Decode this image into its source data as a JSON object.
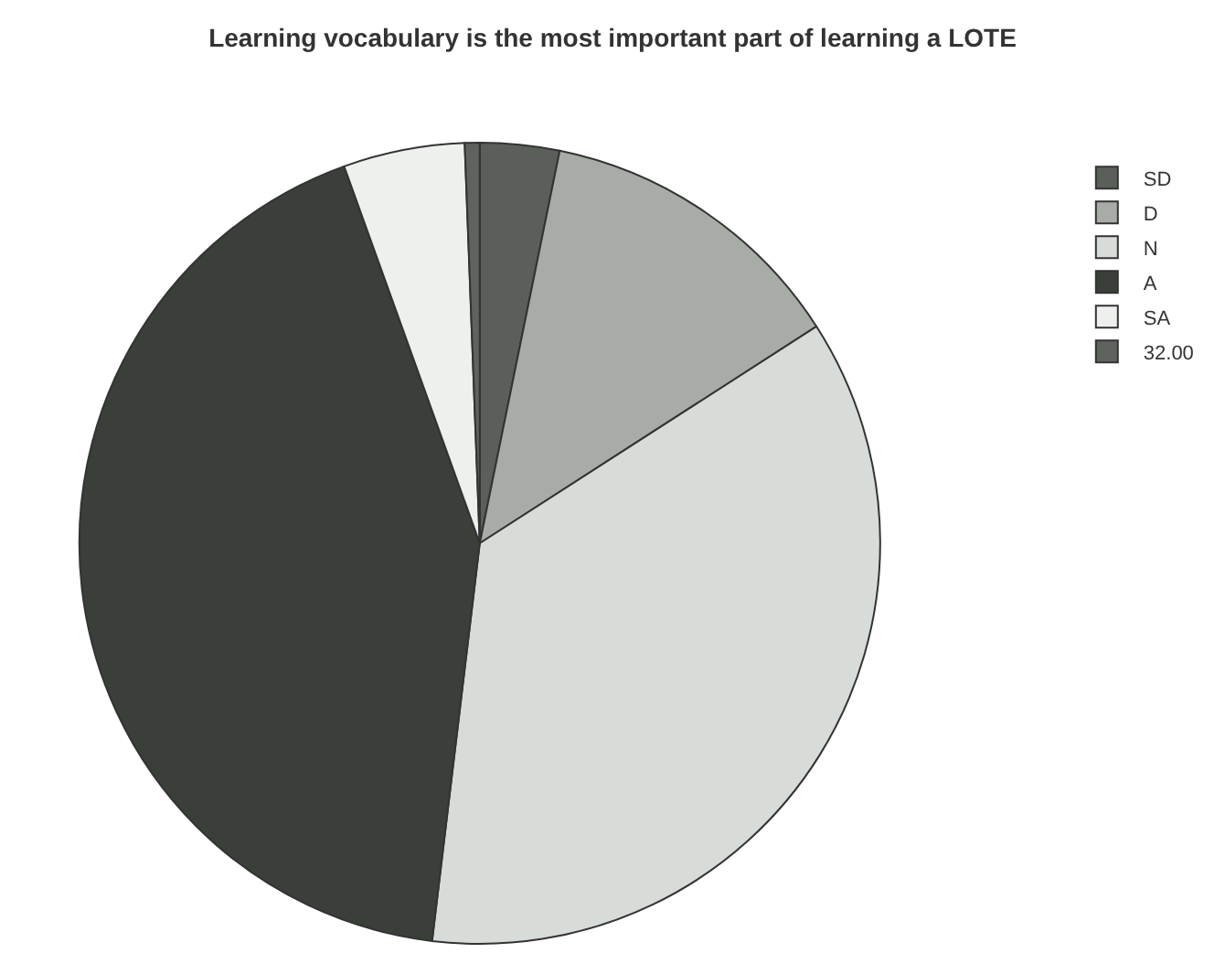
{
  "chart_data": {
    "type": "pie",
    "title": "Learning vocabulary is the most important part of learning a LOTE",
    "categories": [
      "SD",
      "D",
      "N",
      "A",
      "SA",
      "32.00"
    ],
    "values": [
      3.2,
      12.7,
      36.0,
      42.6,
      4.9,
      0.6
    ],
    "colors": [
      "#5a5f5a",
      "#a8aca6",
      "#d8dcd8",
      "#3a3f3a",
      "#eef0ee",
      "#5e635e"
    ],
    "legend": "top right"
  }
}
